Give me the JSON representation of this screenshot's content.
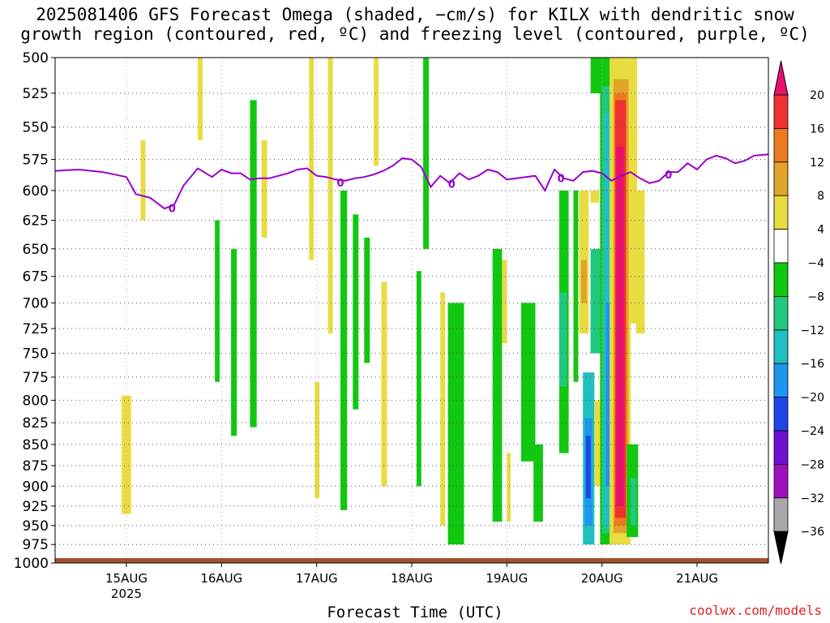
{
  "title_line1": "2025081406 GFS Forecast Omega (shaded, −cm/s) for KILX with dendritic snow",
  "title_line2": "growth region (contoured, red, ºC) and freezing level (contoured, purple, ºC)",
  "credit": "coolwx.com/models",
  "colors": {
    "freezing_line": "#9900cc",
    "ground": "#a0522d",
    "grid": "#555555"
  },
  "chart_data": {
    "type": "heatmap",
    "xlabel": "Forecast Time (UTC)",
    "ylabel": "",
    "x_tick_labels": [
      {
        "day": 15,
        "label": "15AUG",
        "sub": "2025"
      },
      {
        "day": 16,
        "label": "16AUG",
        "sub": ""
      },
      {
        "day": 17,
        "label": "17AUG",
        "sub": ""
      },
      {
        "day": 18,
        "label": "18AUG",
        "sub": ""
      },
      {
        "day": 19,
        "label": "19AUG",
        "sub": ""
      },
      {
        "day": 20,
        "label": "20AUG",
        "sub": ""
      },
      {
        "day": 21,
        "label": "21AUG",
        "sub": ""
      }
    ],
    "xlim_day": [
      14.25,
      21.75
    ],
    "y_levels": [
      "500",
      "525",
      "550",
      "575",
      "600",
      "625",
      "650",
      "675",
      "700",
      "725",
      "750",
      "775",
      "800",
      "825",
      "850",
      "875",
      "900",
      "925",
      "950",
      "975",
      "1000"
    ],
    "ylim_hpa": [
      1000,
      500
    ],
    "y_scale": "log-pressure",
    "grid": true,
    "colorbar": {
      "labels": [
        "20",
        "16",
        "12",
        "8",
        "4",
        "−4",
        "−8",
        "−12",
        "−16",
        "−20",
        "−24",
        "−28",
        "−32",
        "−36"
      ],
      "boundaries": [
        20,
        16,
        12,
        8,
        4,
        -4,
        -8,
        -12,
        -16,
        -20,
        -24,
        -28,
        -32,
        -36
      ],
      "bin_colors": [
        "#f03030",
        "#ee7a20",
        "#e0a428",
        "#e8dc40",
        "#ffffff",
        "#10c810",
        "#20c880",
        "#20c0c0",
        "#1e96f0",
        "#1e46e6",
        "#7010d0",
        "#a010c0",
        "#a8a8a8"
      ],
      "over_color": "#e8106e",
      "under_color": "#000000"
    },
    "freezing_level_series": {
      "label": "0",
      "day": [
        14.25,
        14.5,
        14.75,
        15.0,
        15.1,
        15.25,
        15.4,
        15.5,
        15.6,
        15.75,
        15.9,
        16.0,
        16.1,
        16.2,
        16.3,
        16.4,
        16.5,
        16.6,
        16.7,
        16.8,
        16.9,
        17.0,
        17.1,
        17.2,
        17.3,
        17.4,
        17.5,
        17.6,
        17.7,
        17.8,
        17.9,
        18.0,
        18.1,
        18.2,
        18.3,
        18.4,
        18.5,
        18.6,
        18.7,
        18.8,
        18.9,
        19.0,
        19.1,
        19.2,
        19.3,
        19.4,
        19.5,
        19.6,
        19.7,
        19.8,
        19.9,
        20.0,
        20.1,
        20.2,
        20.3,
        20.4,
        20.5,
        20.6,
        20.7,
        20.8,
        20.9,
        21.0,
        21.1,
        21.2,
        21.3,
        21.4,
        21.5,
        21.6,
        21.75
      ],
      "hpa": [
        584,
        583,
        585,
        589,
        603,
        606,
        615,
        612,
        596,
        582,
        589,
        583,
        586,
        586,
        591,
        590,
        590,
        588,
        586,
        583,
        582,
        588,
        589,
        591,
        592,
        590,
        589,
        587,
        584,
        580,
        574,
        575,
        581,
        597,
        588,
        594,
        586,
        591,
        588,
        583,
        585,
        591,
        590,
        589,
        588,
        600,
        583,
        590,
        592,
        585,
        584,
        586,
        592,
        588,
        585,
        590,
        594,
        592,
        585,
        585,
        578,
        583,
        575,
        572,
        574,
        578,
        576,
        572,
        571
      ],
      "label_days": [
        15.48,
        17.25,
        18.42,
        19.57,
        20.7
      ]
    },
    "omega_regions": [
      {
        "value": 6,
        "day0": 14.95,
        "day1": 15.05,
        "hpa0": 795,
        "hpa1": 935
      },
      {
        "value": 6,
        "day0": 15.15,
        "day1": 15.2,
        "hpa0": 560,
        "hpa1": 625
      },
      {
        "value": 6,
        "day0": 15.75,
        "day1": 15.8,
        "hpa0": 500,
        "hpa1": 560
      },
      {
        "value": -6,
        "day0": 15.93,
        "day1": 15.98,
        "hpa0": 625,
        "hpa1": 780
      },
      {
        "value": -6,
        "day0": 16.1,
        "day1": 16.16,
        "hpa0": 650,
        "hpa1": 840
      },
      {
        "value": -6,
        "day0": 16.3,
        "day1": 16.37,
        "hpa0": 530,
        "hpa1": 830
      },
      {
        "value": 6,
        "day0": 16.42,
        "day1": 16.48,
        "hpa0": 560,
        "hpa1": 640
      },
      {
        "value": 6,
        "day0": 16.92,
        "day1": 16.97,
        "hpa0": 500,
        "hpa1": 660
      },
      {
        "value": 6,
        "day0": 16.98,
        "day1": 17.03,
        "hpa0": 780,
        "hpa1": 915
      },
      {
        "value": 6,
        "day0": 17.12,
        "day1": 17.17,
        "hpa0": 500,
        "hpa1": 730
      },
      {
        "value": -6,
        "day0": 17.25,
        "day1": 17.32,
        "hpa0": 600,
        "hpa1": 930
      },
      {
        "value": -6,
        "day0": 17.38,
        "day1": 17.44,
        "hpa0": 620,
        "hpa1": 810
      },
      {
        "value": -6,
        "day0": 17.5,
        "day1": 17.56,
        "hpa0": 640,
        "hpa1": 760
      },
      {
        "value": 6,
        "day0": 17.6,
        "day1": 17.65,
        "hpa0": 500,
        "hpa1": 580
      },
      {
        "value": 6,
        "day0": 17.68,
        "day1": 17.74,
        "hpa0": 680,
        "hpa1": 900
      },
      {
        "value": -6,
        "day0": 18.05,
        "day1": 18.1,
        "hpa0": 670,
        "hpa1": 900
      },
      {
        "value": -6,
        "day0": 18.12,
        "day1": 18.18,
        "hpa0": 500,
        "hpa1": 650
      },
      {
        "value": 6,
        "day0": 18.3,
        "day1": 18.35,
        "hpa0": 690,
        "hpa1": 950
      },
      {
        "value": -6,
        "day0": 18.38,
        "day1": 18.55,
        "hpa0": 700,
        "hpa1": 975
      },
      {
        "value": -6,
        "day0": 18.85,
        "day1": 18.95,
        "hpa0": 650,
        "hpa1": 945
      },
      {
        "value": 6,
        "day0": 18.95,
        "day1": 19.0,
        "hpa0": 660,
        "hpa1": 740
      },
      {
        "value": 6,
        "day0": 19.0,
        "day1": 19.04,
        "hpa0": 860,
        "hpa1": 945
      },
      {
        "value": -6,
        "day0": 19.15,
        "day1": 19.3,
        "hpa0": 700,
        "hpa1": 870
      },
      {
        "value": -6,
        "day0": 19.28,
        "day1": 19.38,
        "hpa0": 850,
        "hpa1": 945
      },
      {
        "value": -6,
        "day0": 19.55,
        "day1": 19.65,
        "hpa0": 600,
        "hpa1": 860
      },
      {
        "value": -10,
        "day0": 19.55,
        "day1": 19.63,
        "hpa0": 690,
        "hpa1": 785
      },
      {
        "value": -6,
        "day0": 19.7,
        "day1": 19.75,
        "hpa0": 600,
        "hpa1": 780
      },
      {
        "value": 6,
        "day0": 19.76,
        "day1": 19.86,
        "hpa0": 600,
        "hpa1": 730
      },
      {
        "value": 10,
        "day0": 19.78,
        "day1": 19.84,
        "hpa0": 660,
        "hpa1": 700
      },
      {
        "value": 6,
        "day0": 19.8,
        "day1": 19.85,
        "hpa0": 820,
        "hpa1": 850
      },
      {
        "value": -6,
        "day0": 19.88,
        "day1": 20.0,
        "hpa0": 500,
        "hpa1": 525
      },
      {
        "value": -10,
        "day0": 19.88,
        "day1": 20.0,
        "hpa0": 650,
        "hpa1": 750
      },
      {
        "value": 6,
        "day0": 19.88,
        "day1": 19.97,
        "hpa0": 600,
        "hpa1": 610
      },
      {
        "value": -14,
        "day0": 19.8,
        "day1": 19.92,
        "hpa0": 770,
        "hpa1": 975
      },
      {
        "value": -18,
        "day0": 19.82,
        "day1": 19.9,
        "hpa0": 820,
        "hpa1": 950
      },
      {
        "value": -22,
        "day0": 19.83,
        "day1": 19.88,
        "hpa0": 840,
        "hpa1": 915
      },
      {
        "value": 6,
        "day0": 19.92,
        "day1": 19.98,
        "hpa0": 800,
        "hpa1": 900
      },
      {
        "value": -6,
        "day0": 19.98,
        "day1": 20.12,
        "hpa0": 500,
        "hpa1": 975
      },
      {
        "value": -10,
        "day0": 20.0,
        "day1": 20.1,
        "hpa0": 520,
        "hpa1": 960
      },
      {
        "value": -14,
        "day0": 20.02,
        "day1": 20.09,
        "hpa0": 540,
        "hpa1": 950
      },
      {
        "value": -18,
        "day0": 20.04,
        "day1": 20.08,
        "hpa0": 700,
        "hpa1": 900
      },
      {
        "value": 6,
        "day0": 20.08,
        "day1": 20.3,
        "hpa0": 500,
        "hpa1": 975
      },
      {
        "value": 10,
        "day0": 20.12,
        "day1": 20.28,
        "hpa0": 515,
        "hpa1": 960
      },
      {
        "value": 14,
        "day0": 20.13,
        "day1": 20.26,
        "hpa0": 525,
        "hpa1": 950
      },
      {
        "value": 18,
        "day0": 20.14,
        "day1": 20.25,
        "hpa0": 530,
        "hpa1": 940
      },
      {
        "value": 22,
        "day0": 20.15,
        "day1": 20.23,
        "hpa0": 565,
        "hpa1": 925
      },
      {
        "value": -6,
        "day0": 20.26,
        "day1": 20.38,
        "hpa0": 850,
        "hpa1": 965
      },
      {
        "value": -10,
        "day0": 20.3,
        "day1": 20.36,
        "hpa0": 890,
        "hpa1": 950
      },
      {
        "value": 6,
        "day0": 20.3,
        "day1": 20.37,
        "hpa0": 500,
        "hpa1": 720
      },
      {
        "value": 6,
        "day0": 20.36,
        "day1": 20.45,
        "hpa0": 600,
        "hpa1": 730
      }
    ]
  }
}
